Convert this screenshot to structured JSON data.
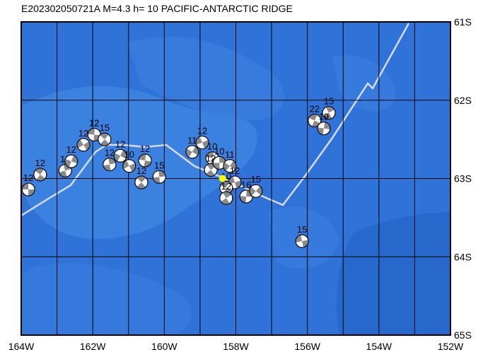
{
  "map": {
    "title": "E202302050721A  M=4.3  h= 10  PACIFIC-ANTARCTIC RIDGE",
    "xlim": [
      -164,
      -152
    ],
    "ylim": [
      -65,
      -61
    ],
    "xgrid": [
      -163,
      -162,
      -161,
      -160,
      -159,
      -158,
      -157,
      -156,
      -155,
      -154,
      -153
    ],
    "ygrid": [
      -62,
      -63,
      -64
    ],
    "xticks": [
      {
        "value": -164,
        "label": "164W"
      },
      {
        "value": -162,
        "label": "162W"
      },
      {
        "value": -160,
        "label": "160W"
      },
      {
        "value": -158,
        "label": "158W"
      },
      {
        "value": -156,
        "label": "156W"
      },
      {
        "value": -154,
        "label": "154W"
      },
      {
        "value": -152,
        "label": "152W"
      }
    ],
    "yticks": [
      {
        "value": -61,
        "label": "61S"
      },
      {
        "value": -62,
        "label": "62S"
      },
      {
        "value": -63,
        "label": "63S"
      },
      {
        "value": -64,
        "label": "64S"
      },
      {
        "value": -65,
        "label": "65S"
      }
    ],
    "events": [
      {
        "lon": -163.8,
        "lat": -63.14,
        "label": "12"
      },
      {
        "lon": -163.47,
        "lat": -62.95,
        "label": "12"
      },
      {
        "lon": -162.77,
        "lat": -62.9,
        "label": "12"
      },
      {
        "lon": -162.6,
        "lat": -62.78,
        "label": "12"
      },
      {
        "lon": -162.26,
        "lat": -62.57,
        "label": "12"
      },
      {
        "lon": -161.96,
        "lat": -62.44,
        "label": "12"
      },
      {
        "lon": -161.67,
        "lat": -62.5,
        "label": "15"
      },
      {
        "lon": -161.53,
        "lat": -62.82,
        "label": "12"
      },
      {
        "lon": -161.23,
        "lat": -62.71,
        "label": "12"
      },
      {
        "lon": -160.98,
        "lat": -62.84,
        "label": "10"
      },
      {
        "lon": -160.54,
        "lat": -62.77,
        "label": "12"
      },
      {
        "lon": -160.64,
        "lat": -63.05,
        "label": "12"
      },
      {
        "lon": -160.14,
        "lat": -62.98,
        "label": "15"
      },
      {
        "lon": -159.22,
        "lat": -62.66,
        "label": "11"
      },
      {
        "lon": -158.94,
        "lat": -62.54,
        "label": "12"
      },
      {
        "lon": -158.66,
        "lat": -62.74,
        "label": "10"
      },
      {
        "lon": -158.7,
        "lat": -62.89,
        "label": "12"
      },
      {
        "lon": -158.46,
        "lat": -62.8,
        "label": "10"
      },
      {
        "lon": -158.17,
        "lat": -62.84,
        "label": "11"
      },
      {
        "lon": -158.03,
        "lat": -63.05,
        "label": "12"
      },
      {
        "lon": -158.27,
        "lat": -63.12,
        "label": "10"
      },
      {
        "lon": -158.27,
        "lat": -63.25,
        "label": "12"
      },
      {
        "lon": -157.71,
        "lat": -63.23,
        "label": "16"
      },
      {
        "lon": -157.44,
        "lat": -63.16,
        "label": "15"
      },
      {
        "lon": -156.15,
        "lat": -63.8,
        "label": "15"
      },
      {
        "lon": -155.8,
        "lat": -62.26,
        "label": "22"
      },
      {
        "lon": -155.4,
        "lat": -62.16,
        "label": "15"
      },
      {
        "lon": -155.54,
        "lat": -62.36,
        "label": "19"
      }
    ],
    "epicenter": {
      "lon": -158.37,
      "lat": -63.0
    }
  }
}
